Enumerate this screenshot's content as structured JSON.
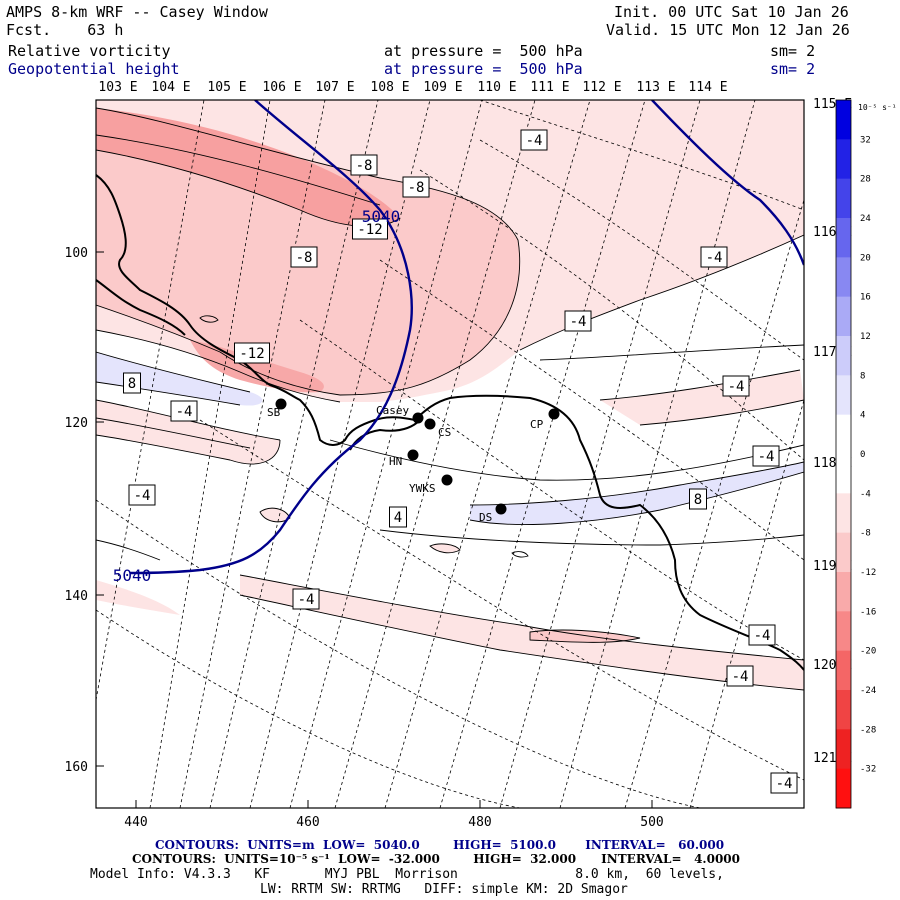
{
  "header": {
    "title": "AMPS 8-km WRF -- Casey Window",
    "fcst": "Fcst.    63 h",
    "init": "Init. 00 UTC Sat 10 Jan 26",
    "valid": "Valid. 15 UTC Mon 12 Jan 26",
    "field1": {
      "name": "Relative vorticity",
      "pressure": "at pressure =  500 hPa",
      "sm": "sm= 2"
    },
    "field2": {
      "name": "Geopotential height",
      "pressure": "at pressure =  500 hPa",
      "sm": "sm= 2"
    }
  },
  "longitude_labels_top": [
    "103 E",
    "104 E",
    "105 E",
    "106 E",
    "107 E",
    "108 E",
    "109 E",
    "110 E",
    "111 E",
    "112 E",
    "113 E",
    "114 E"
  ],
  "longitude_labels_right": [
    "115 E",
    "116 E",
    "117 E",
    "118 E",
    "119 E",
    "120 E",
    "121 E"
  ],
  "y_axis_labels": [
    "100",
    "120",
    "140",
    "160"
  ],
  "x_axis_labels": [
    "440",
    "460",
    "480",
    "500"
  ],
  "stations": [
    {
      "label": "SB"
    },
    {
      "label": "Casey"
    },
    {
      "label": "CS"
    },
    {
      "label": "CP"
    },
    {
      "label": "HN"
    },
    {
      "label": "YWKS"
    },
    {
      "label": "DS"
    }
  ],
  "contour_labels": [
    "-4",
    "-8",
    "-8",
    "-12",
    "-8",
    "-4",
    "-4",
    "-12",
    "8",
    "-4",
    "-4",
    "-4",
    "-4",
    "8",
    "4",
    "-4",
    "-4",
    "-4",
    "-4",
    "-4"
  ],
  "height_labels": [
    "5040",
    "5040"
  ],
  "colorbar": {
    "unit": "10⁻⁵ s⁻¹",
    "ticks": [
      "32",
      "28",
      "24",
      "20",
      "16",
      "12",
      "8",
      "4",
      "0",
      "-4",
      "-8",
      "-12",
      "-16",
      "-20",
      "-24",
      "-28",
      "-32"
    ],
    "colors": [
      "#0000e0",
      "#2222e6",
      "#4444ea",
      "#6666ee",
      "#8888f2",
      "#aaaaf6",
      "#ccccfa",
      "#e4e4fc",
      "#ffffff",
      "#ffffff",
      "#fde4e4",
      "#fbcaca",
      "#f9aaaa",
      "#f78888",
      "#f46666",
      "#f04444",
      "#ee2222",
      "#ff1010"
    ]
  },
  "footer": {
    "line1": "CONTOURS:  UNITS=m  LOW=  5040.0        HIGH=  5100.0       INTERVAL=   60.000",
    "line2": "CONTOURS:  UNITS=10⁻⁵ s⁻¹  LOW=  -32.000        HIGH=  32.000      INTERVAL=   4.0000",
    "line3": "Model Info: V4.3.3   KF       MYJ PBL  Morrison               8.0 km,  60 levels,",
    "line4": "LW: RRTM SW: RRTMG   DIFF: simple KM: 2D Smagor"
  }
}
